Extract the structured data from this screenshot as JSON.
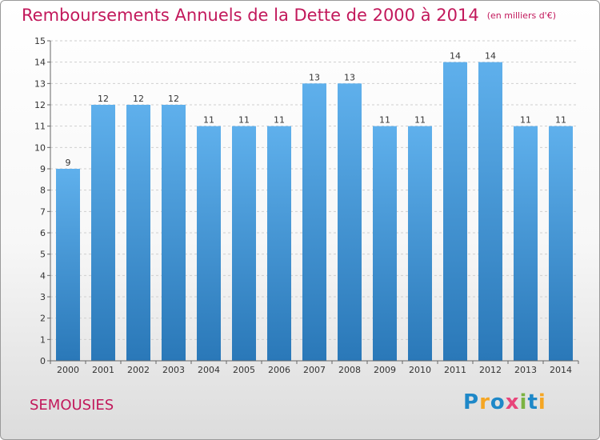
{
  "header": {
    "title": "Remboursements Annuels de la Dette de 2000 à 2014",
    "unit": "(en milliers d'€)"
  },
  "footer": {
    "commune": "SEMOUSIES",
    "brand": "Proxiti",
    "brand_letters": [
      {
        "ch": "P",
        "color": "#1e88c8"
      },
      {
        "ch": "r",
        "color": "#f5a623"
      },
      {
        "ch": "o",
        "color": "#1e88c8"
      },
      {
        "ch": "x",
        "color": "#e8457a"
      },
      {
        "ch": "i",
        "color": "#7cb342"
      },
      {
        "ch": "t",
        "color": "#1e88c8"
      },
      {
        "ch": "i",
        "color": "#f5a623"
      }
    ]
  },
  "colors": {
    "bar_top": "#5fb0ec",
    "bar_bottom": "#2a78b8",
    "title": "#c2185b"
  },
  "chart_data": {
    "type": "bar",
    "title": "Remboursements Annuels de la Dette de 2000 à 2014",
    "unit": "(en milliers d'€)",
    "categories": [
      "2000",
      "2001",
      "2002",
      "2003",
      "2004",
      "2005",
      "2006",
      "2007",
      "2008",
      "2009",
      "2010",
      "2011",
      "2012",
      "2013",
      "2014"
    ],
    "values": [
      9,
      12,
      12,
      12,
      11,
      11,
      11,
      13,
      13,
      11,
      11,
      14,
      14,
      11,
      11
    ],
    "ylim": [
      0,
      15
    ],
    "yticks": [
      0,
      1,
      2,
      3,
      4,
      5,
      6,
      7,
      8,
      9,
      10,
      11,
      12,
      13,
      14,
      15
    ],
    "grid": true,
    "data_labels": true
  }
}
